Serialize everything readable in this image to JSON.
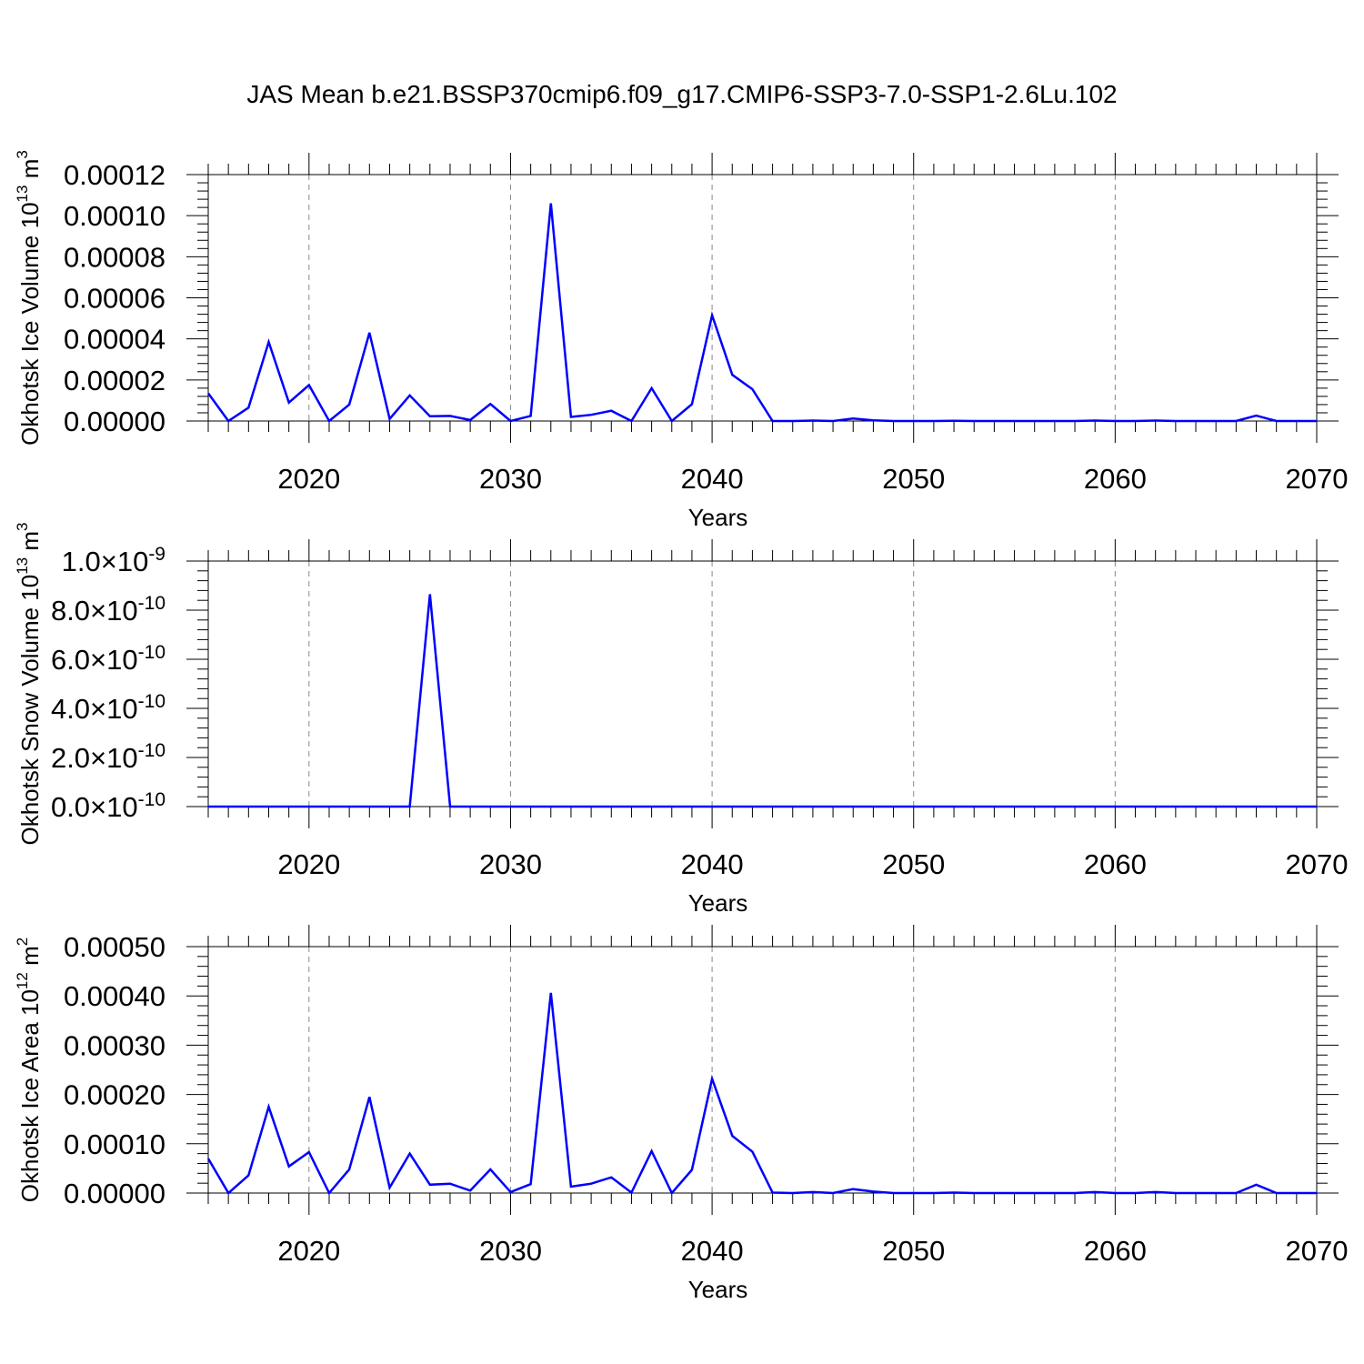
{
  "title": "JAS Mean b.e21.BSSP370cmip6.f09_g17.CMIP6-SSP3-7.0-SSP1-2.6Lu.102",
  "colors": {
    "line": "#0000ff",
    "axis": "#000000",
    "grid": "#888888"
  },
  "chart_data": [
    {
      "type": "line",
      "xlabel": "Years",
      "ylabel": "Okhotsk Ice Volume 10",
      "ylabel_exp": "13",
      "ylabel_unit": "m",
      "ylabel_unit_exp": "3",
      "xlim": [
        2015,
        2070
      ],
      "ylim": [
        0,
        0.00012
      ],
      "x_ticks": [
        "2020",
        "2030",
        "2040",
        "2050",
        "2060",
        "2070"
      ],
      "y_ticks": [
        {
          "value": 0,
          "label": "0.00000"
        },
        {
          "value": 2e-05,
          "label": "0.00002"
        },
        {
          "value": 4e-05,
          "label": "0.00004"
        },
        {
          "value": 6e-05,
          "label": "0.00006"
        },
        {
          "value": 8e-05,
          "label": "0.00008"
        },
        {
          "value": 0.0001,
          "label": "0.00010"
        },
        {
          "value": 0.00012,
          "label": "0.00012"
        }
      ],
      "grid": "vertical dashed",
      "x": [
        2015,
        2016,
        2017,
        2018,
        2019,
        2020,
        2021,
        2022,
        2023,
        2024,
        2025,
        2026,
        2027,
        2028,
        2029,
        2030,
        2031,
        2032,
        2033,
        2034,
        2035,
        2036,
        2037,
        2038,
        2039,
        2040,
        2041,
        2042,
        2043,
        2044,
        2045,
        2046,
        2047,
        2048,
        2049,
        2050,
        2051,
        2052,
        2053,
        2054,
        2055,
        2056,
        2057,
        2058,
        2059,
        2060,
        2061,
        2062,
        2063,
        2064,
        2065,
        2066,
        2067,
        2068,
        2069,
        2070
      ],
      "values": [
        1.35e-05,
        0,
        6.5e-06,
        3.85e-05,
        9e-06,
        1.75e-05,
        0,
        8e-06,
        4.3e-05,
        1e-06,
        1.25e-05,
        2.3e-06,
        2.5e-06,
        5e-07,
        8.3e-06,
        0,
        2.5e-06,
        0.000106,
        2e-06,
        3e-06,
        5e-06,
        0,
        1.6e-05,
        0,
        8.2e-06,
        5.15e-05,
        2.25e-05,
        1.55e-05,
        0,
        0,
        2e-07,
        0,
        1.2e-06,
        3e-07,
        0,
        0,
        0,
        1e-07,
        0,
        0,
        0,
        0,
        0,
        0,
        2e-07,
        0,
        0,
        2e-07,
        0,
        0,
        0,
        0,
        2.6e-06,
        0,
        0,
        0
      ]
    },
    {
      "type": "line",
      "xlabel": "Years",
      "ylabel": "Okhotsk Snow Volume 10",
      "ylabel_exp": "13",
      "ylabel_unit": "m",
      "ylabel_unit_exp": "3",
      "xlim": [
        2015,
        2070
      ],
      "ylim": [
        0,
        1e-09
      ],
      "x_ticks": [
        "2020",
        "2030",
        "2040",
        "2050",
        "2060",
        "2070"
      ],
      "y_ticks": [
        {
          "value": 0,
          "mant": "0.0",
          "exp": "-10"
        },
        {
          "value": 2e-10,
          "mant": "2.0",
          "exp": "-10"
        },
        {
          "value": 4e-10,
          "mant": "4.0",
          "exp": "-10"
        },
        {
          "value": 6e-10,
          "mant": "6.0",
          "exp": "-10"
        },
        {
          "value": 8e-10,
          "mant": "8.0",
          "exp": "-10"
        },
        {
          "value": 1e-09,
          "mant": "1.0",
          "exp": "-9"
        }
      ],
      "grid": "vertical dashed",
      "x": [
        2015,
        2016,
        2017,
        2018,
        2019,
        2020,
        2021,
        2022,
        2023,
        2024,
        2025,
        2026,
        2027,
        2028,
        2029,
        2030,
        2031,
        2032,
        2033,
        2034,
        2035,
        2036,
        2037,
        2038,
        2039,
        2040,
        2041,
        2042,
        2043,
        2044,
        2045,
        2046,
        2047,
        2048,
        2049,
        2050,
        2051,
        2052,
        2053,
        2054,
        2055,
        2056,
        2057,
        2058,
        2059,
        2060,
        2061,
        2062,
        2063,
        2064,
        2065,
        2066,
        2067,
        2068,
        2069,
        2070
      ],
      "values": [
        0,
        0,
        0,
        0,
        0,
        0,
        0,
        0,
        0,
        0,
        0,
        8.65e-10,
        0,
        0,
        0,
        0,
        0,
        0,
        0,
        0,
        0,
        0,
        0,
        0,
        0,
        0,
        0,
        0,
        0,
        0,
        0,
        0,
        0,
        0,
        0,
        0,
        0,
        0,
        0,
        0,
        0,
        0,
        0,
        0,
        0,
        0,
        0,
        0,
        0,
        0,
        0,
        0,
        0,
        0,
        0,
        0
      ]
    },
    {
      "type": "line",
      "xlabel": "Years",
      "ylabel": "Okhotsk Ice Area 10",
      "ylabel_exp": "12",
      "ylabel_unit": "m",
      "ylabel_unit_exp": "2",
      "xlim": [
        2015,
        2070
      ],
      "ylim": [
        0,
        0.0005
      ],
      "x_ticks": [
        "2020",
        "2030",
        "2040",
        "2050",
        "2060",
        "2070"
      ],
      "y_ticks": [
        {
          "value": 0,
          "label": "0.00000"
        },
        {
          "value": 0.0001,
          "label": "0.00010"
        },
        {
          "value": 0.0002,
          "label": "0.00020"
        },
        {
          "value": 0.0003,
          "label": "0.00030"
        },
        {
          "value": 0.0004,
          "label": "0.00040"
        },
        {
          "value": 0.0005,
          "label": "0.00050"
        }
      ],
      "grid": "vertical dashed",
      "x": [
        2015,
        2016,
        2017,
        2018,
        2019,
        2020,
        2021,
        2022,
        2023,
        2024,
        2025,
        2026,
        2027,
        2028,
        2029,
        2030,
        2031,
        2032,
        2033,
        2034,
        2035,
        2036,
        2037,
        2038,
        2039,
        2040,
        2041,
        2042,
        2043,
        2044,
        2045,
        2046,
        2047,
        2048,
        2049,
        2050,
        2051,
        2052,
        2053,
        2054,
        2055,
        2056,
        2057,
        2058,
        2059,
        2060,
        2061,
        2062,
        2063,
        2064,
        2065,
        2066,
        2067,
        2068,
        2069,
        2070
      ],
      "values": [
        7e-05,
        0,
        3.6e-05,
        0.000175,
        5.4e-05,
        8.3e-05,
        0,
        4.8e-05,
        0.000195,
        1.1e-05,
        8e-05,
        1.7e-05,
        1.9e-05,
        5e-06,
        4.8e-05,
        2e-06,
        1.8e-05,
        0.000406,
        1.3e-05,
        1.9e-05,
        3.2e-05,
        1e-06,
        8.5e-05,
        0,
        4.7e-05,
        0.000232,
        0.000116,
        8.4e-05,
        1e-06,
        0,
        2e-06,
        0,
        8e-06,
        3e-06,
        0,
        0,
        0,
        1e-06,
        0,
        0,
        0,
        0,
        0,
        0,
        2e-06,
        0,
        0,
        2e-06,
        0,
        0,
        0,
        0,
        1.7e-05,
        0,
        0,
        0
      ]
    }
  ]
}
